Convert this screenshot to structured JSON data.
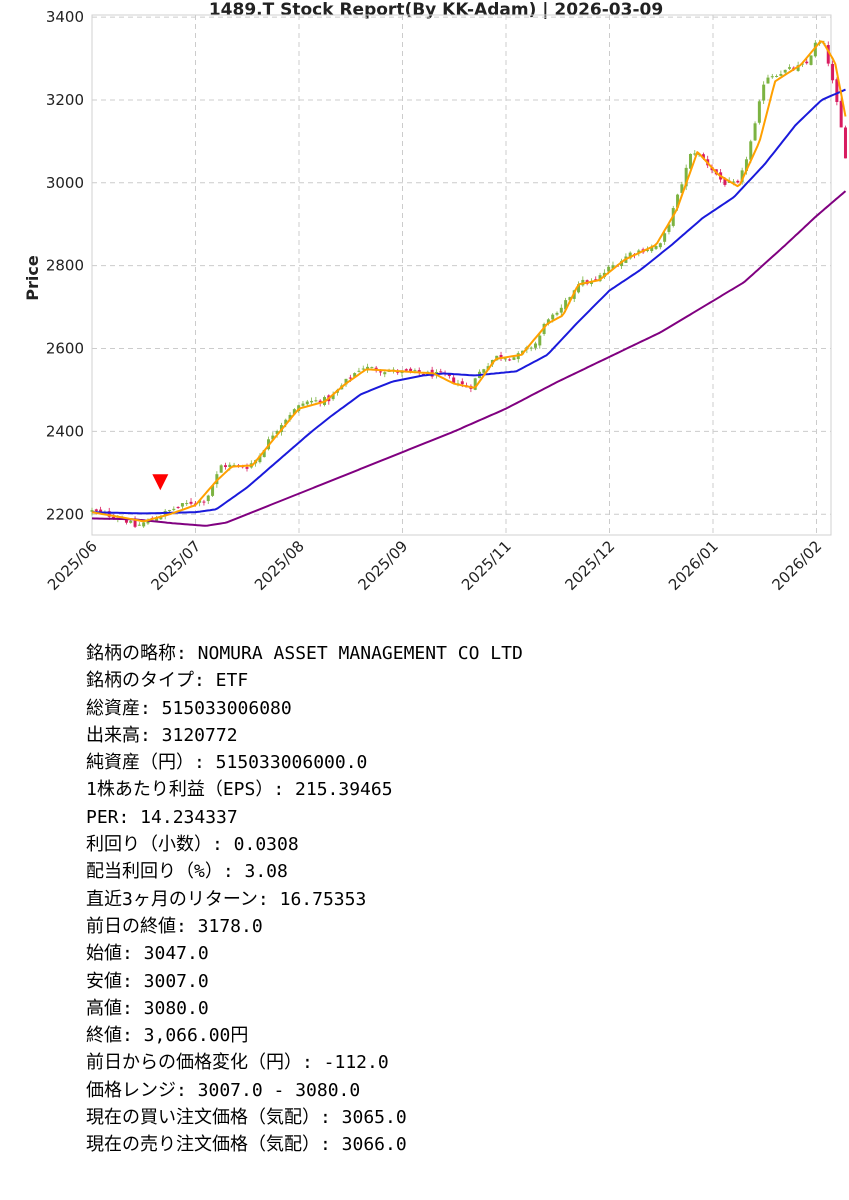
{
  "chart_data": {
    "type": "candlestick",
    "title": "1489.T   Stock Report(By KK-Adam) | 2026-03-09",
    "ylabel": "Price",
    "xlabel": "",
    "ylim": [
      2150,
      3405
    ],
    "yticks": [
      2200,
      2400,
      2600,
      2800,
      3000,
      3200,
      3400
    ],
    "xtick_labels": [
      "2025/06",
      "2025/07",
      "2025/08",
      "2025/09",
      "2025/11",
      "2025/12",
      "2026/01",
      "2026/02"
    ],
    "grid": true,
    "signal_marker": {
      "shape": "down-triangle",
      "color": "#ff0000",
      "date_index": 0.66,
      "price": 2258
    },
    "colors": {
      "up": "#7cb342",
      "down": "#d81b60",
      "ma_short": "#ffa000",
      "ma_mid": "#1a1adb",
      "ma_long": "#800080"
    },
    "close_anchors": [
      [
        0.0,
        2208
      ],
      [
        0.3,
        2190
      ],
      [
        0.42,
        2170
      ],
      [
        0.55,
        2185
      ],
      [
        0.66,
        2198
      ],
      [
        0.8,
        2215
      ],
      [
        0.95,
        2228
      ],
      [
        1.1,
        2235
      ],
      [
        1.25,
        2318
      ],
      [
        1.5,
        2315
      ],
      [
        1.6,
        2335
      ],
      [
        1.75,
        2395
      ],
      [
        1.9,
        2440
      ],
      [
        2.05,
        2470
      ],
      [
        2.3,
        2478
      ],
      [
        2.45,
        2520
      ],
      [
        2.6,
        2555
      ],
      [
        2.9,
        2545
      ],
      [
        3.2,
        2540
      ],
      [
        3.4,
        2535
      ],
      [
        3.55,
        2515
      ],
      [
        3.65,
        2505
      ],
      [
        3.75,
        2545
      ],
      [
        3.9,
        2580
      ],
      [
        4.1,
        2580
      ],
      [
        4.3,
        2615
      ],
      [
        4.4,
        2675
      ],
      [
        4.5,
        2680
      ],
      [
        4.7,
        2760
      ],
      [
        4.85,
        2760
      ],
      [
        5.0,
        2795
      ],
      [
        5.1,
        2810
      ],
      [
        5.2,
        2830
      ],
      [
        5.35,
        2840
      ],
      [
        5.5,
        2850
      ],
      [
        5.65,
        2960
      ],
      [
        5.8,
        3080
      ],
      [
        5.9,
        3060
      ],
      [
        6.1,
        3000
      ],
      [
        6.25,
        2995
      ],
      [
        6.4,
        3130
      ],
      [
        6.5,
        3255
      ],
      [
        6.7,
        3270
      ],
      [
        6.9,
        3285
      ],
      [
        7.0,
        3340
      ],
      [
        7.08,
        3330
      ],
      [
        7.15,
        3250
      ],
      [
        7.22,
        3160
      ],
      [
        7.28,
        3066
      ]
    ],
    "ma_short_anchors": [
      [
        0.0,
        2205
      ],
      [
        0.3,
        2192
      ],
      [
        0.5,
        2183
      ],
      [
        0.75,
        2200
      ],
      [
        1.0,
        2222
      ],
      [
        1.2,
        2280
      ],
      [
        1.35,
        2315
      ],
      [
        1.55,
        2318
      ],
      [
        1.8,
        2395
      ],
      [
        2.0,
        2455
      ],
      [
        2.25,
        2472
      ],
      [
        2.45,
        2515
      ],
      [
        2.65,
        2550
      ],
      [
        3.0,
        2545
      ],
      [
        3.3,
        2540
      ],
      [
        3.5,
        2515
      ],
      [
        3.7,
        2505
      ],
      [
        3.9,
        2575
      ],
      [
        4.15,
        2585
      ],
      [
        4.4,
        2660
      ],
      [
        4.55,
        2680
      ],
      [
        4.7,
        2755
      ],
      [
        4.9,
        2765
      ],
      [
        5.15,
        2815
      ],
      [
        5.45,
        2850
      ],
      [
        5.65,
        2935
      ],
      [
        5.85,
        3075
      ],
      [
        6.05,
        3020
      ],
      [
        6.25,
        2990
      ],
      [
        6.45,
        3100
      ],
      [
        6.6,
        3245
      ],
      [
        6.85,
        3285
      ],
      [
        7.05,
        3345
      ],
      [
        7.18,
        3290
      ],
      [
        7.28,
        3160
      ]
    ],
    "ma_mid_anchors": [
      [
        0.0,
        2205
      ],
      [
        0.5,
        2202
      ],
      [
        1.0,
        2205
      ],
      [
        1.2,
        2212
      ],
      [
        1.5,
        2265
      ],
      [
        1.8,
        2330
      ],
      [
        2.1,
        2395
      ],
      [
        2.3,
        2435
      ],
      [
        2.6,
        2490
      ],
      [
        2.9,
        2520
      ],
      [
        3.2,
        2535
      ],
      [
        3.4,
        2540
      ],
      [
        3.7,
        2535
      ],
      [
        4.1,
        2545
      ],
      [
        4.4,
        2585
      ],
      [
        4.7,
        2665
      ],
      [
        5.0,
        2740
      ],
      [
        5.3,
        2790
      ],
      [
        5.6,
        2850
      ],
      [
        5.9,
        2915
      ],
      [
        6.2,
        2965
      ],
      [
        6.5,
        3045
      ],
      [
        6.8,
        3140
      ],
      [
        7.05,
        3200
      ],
      [
        7.28,
        3225
      ]
    ],
    "ma_long_anchors": [
      [
        0.0,
        2190
      ],
      [
        0.4,
        2188
      ],
      [
        0.8,
        2178
      ],
      [
        1.1,
        2172
      ],
      [
        1.3,
        2180
      ],
      [
        1.6,
        2210
      ],
      [
        2.0,
        2250
      ],
      [
        2.5,
        2300
      ],
      [
        3.0,
        2350
      ],
      [
        3.5,
        2400
      ],
      [
        4.0,
        2455
      ],
      [
        4.5,
        2520
      ],
      [
        5.0,
        2580
      ],
      [
        5.5,
        2640
      ],
      [
        5.9,
        2700
      ],
      [
        6.3,
        2760
      ],
      [
        6.7,
        2850
      ],
      [
        7.0,
        2920
      ],
      [
        7.28,
        2980
      ]
    ]
  },
  "info": [
    "銘柄の略称: NOMURA ASSET MANAGEMENT CO LTD",
    "銘柄のタイプ: ETF",
    "総資産: 515033006080",
    "出来高: 3120772",
    "純資産（円）: 515033006000.0",
    "1株あたり利益（EPS）: 215.39465",
    "PER: 14.234337",
    "利回り（小数）: 0.0308",
    "配当利回り（%）: 3.08",
    "直近3ヶ月のリターン: 16.75353",
    "前日の終値: 3178.0",
    "始値: 3047.0",
    "安値: 3007.0",
    "高値: 3080.0",
    "終値: 3,066.00円",
    "前日からの価格変化（円）: -112.0",
    "価格レンジ: 3007.0 - 3080.0",
    "現在の買い注文価格（気配）: 3065.0",
    "現在の売り注文価格（気配）: 3066.0"
  ]
}
